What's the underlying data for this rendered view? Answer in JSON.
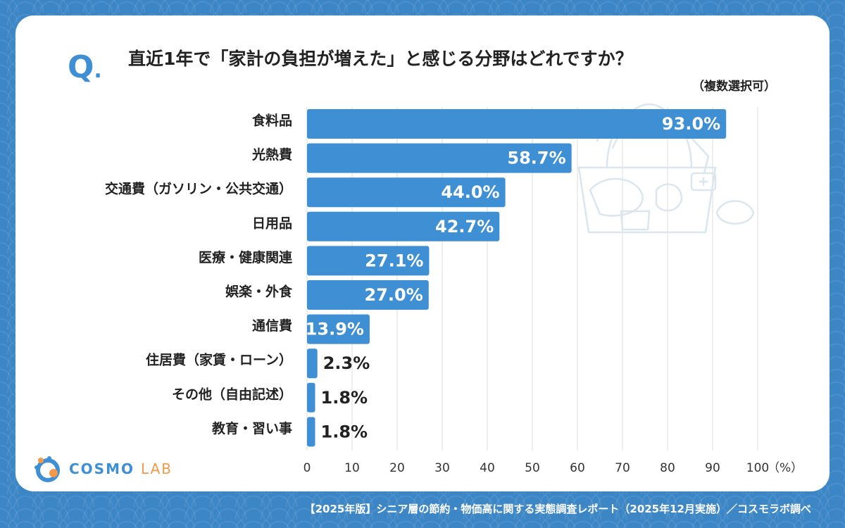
{
  "header": {
    "q_mark": "Q",
    "question": "直近1年で「家計の負担が増えた」と感じる分野はどれですか？",
    "note": "（複数選択可）"
  },
  "chart_data": {
    "type": "bar",
    "orientation": "horizontal",
    "categories": [
      "食料品",
      "光熱費",
      "交通費（ガソリン・公共交通）",
      "日用品",
      "医療・健康関連",
      "娯楽・外食",
      "通信費",
      "住居費（家賃・ローン）",
      "その他（自由記述）",
      "教育・習い事"
    ],
    "values": [
      93.0,
      58.7,
      44.0,
      42.7,
      27.1,
      27.0,
      13.9,
      2.3,
      1.8,
      1.8
    ],
    "value_labels": [
      "93.0%",
      "58.7%",
      "44.0%",
      "42.7%",
      "27.1%",
      "27.0%",
      "13.9%",
      "2.3%",
      "1.8%",
      "1.8%"
    ],
    "x_ticks": [
      "0",
      "10",
      "20",
      "30",
      "40",
      "50",
      "60",
      "70",
      "80",
      "90",
      "100"
    ],
    "x_unit": "（%）",
    "xlim": [
      0,
      100
    ],
    "grid": true,
    "bar_color": "#3e8fd3"
  },
  "branding": {
    "logo_main": "COSMO",
    "logo_sub": "LAB"
  },
  "footer": {
    "source": "【2025年版】シニア層の節約・物価高に関する実態調査レポート（2025年12月実施）／コスモラボ調べ"
  }
}
